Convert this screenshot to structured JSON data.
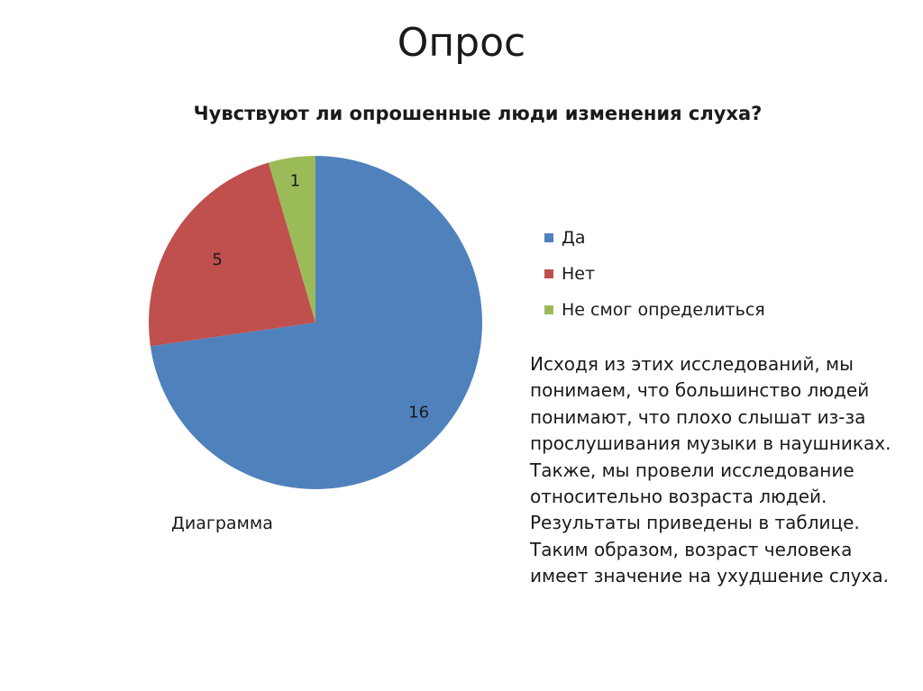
{
  "slide": {
    "title": "Опрос",
    "caption": "Диаграмма",
    "paragraphs": [
      "Исходя из этих исследований, мы понимаем, что большинство людей понимают, что плохо слышат из-за прослушивания музыки в наушниках.",
      "Также, мы провели исследование относительно возраста людей. Результаты приведены в таблице. Таким образом, возраст человека имеет значение на ухудшение слуха."
    ]
  },
  "chart_data": {
    "type": "pie",
    "title": "Чувствуют ли опрошенные люди изменения слуха?",
    "categories": [
      "Да",
      "Нет",
      "Не смог определиться"
    ],
    "values": [
      16,
      5,
      1
    ],
    "colors": [
      "#4F81BD",
      "#C0504D",
      "#9BBB59"
    ],
    "data_labels": [
      "16",
      "5",
      "1"
    ],
    "start_angle": "12 o'clock",
    "direction": "clockwise",
    "legend_position": "right"
  }
}
